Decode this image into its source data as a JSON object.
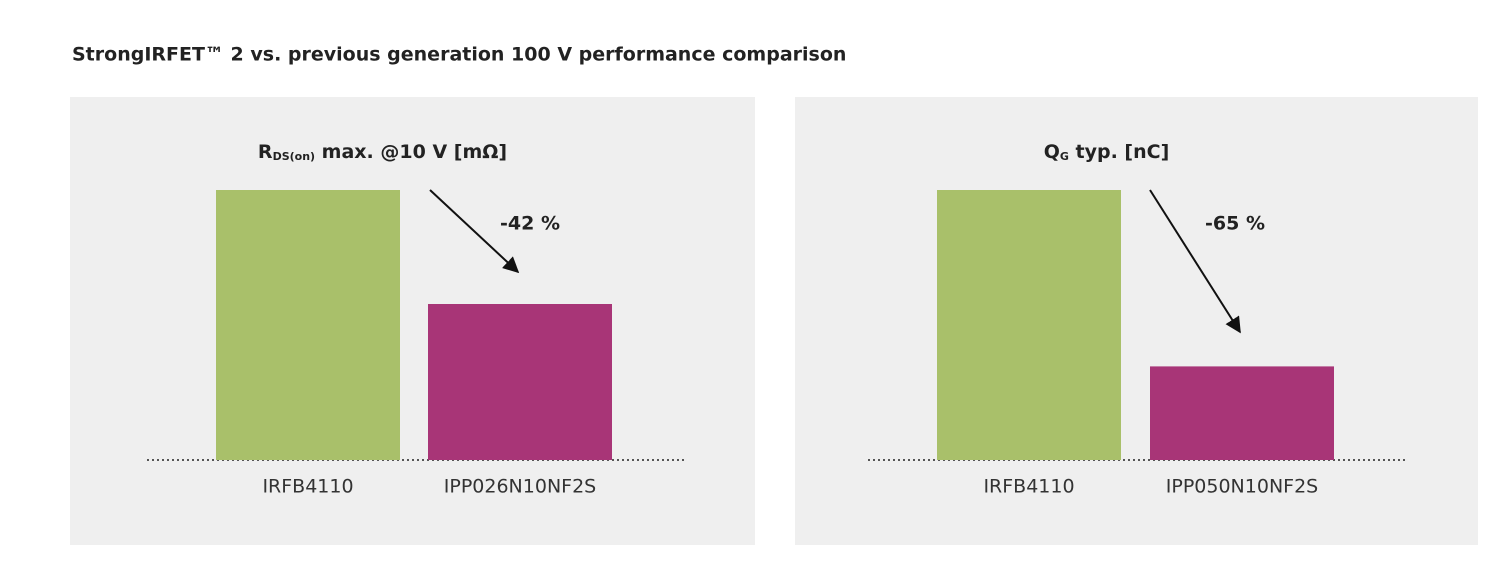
{
  "title": "StrongIRFET™ 2 vs. previous generation 100 V performance comparison",
  "chart_data": [
    {
      "type": "bar",
      "title_parts": [
        "R",
        "DS(on)",
        " max. @10 V [mΩ]"
      ],
      "categories": [
        "IRFB4110",
        "IPP026N10NF2S"
      ],
      "values": [
        4.5,
        2.6
      ],
      "colors": [
        "#a9c06a",
        "#a83577"
      ],
      "ylim": [
        0,
        4.5
      ],
      "annotation": "-42 %"
    },
    {
      "type": "bar",
      "title_parts": [
        "Q",
        "G",
        " typ. [nC]"
      ],
      "categories": [
        "IRFB4110",
        "IPP050N10NF2S"
      ],
      "values": [
        150,
        52
      ],
      "colors": [
        "#a9c06a",
        "#a83577"
      ],
      "ylim": [
        0,
        150
      ],
      "annotation": "-65 %"
    }
  ]
}
